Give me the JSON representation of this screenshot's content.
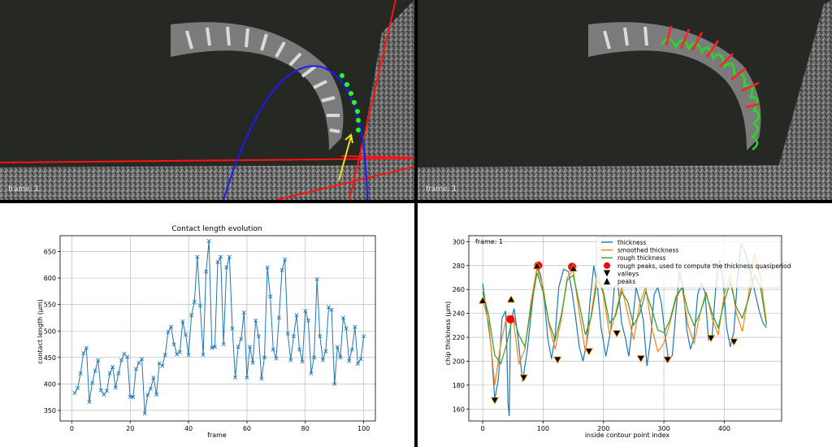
{
  "video_left": {
    "frame_label": "frame: 1"
  },
  "video_right": {
    "frame_label": "frame: 1"
  },
  "chart_data": [
    {
      "type": "line",
      "title": "Contact length evolution",
      "xlabel": "frame",
      "ylabel": "contact length (µm)",
      "xlim": [
        -4,
        104
      ],
      "ylim": [
        330,
        680
      ],
      "xticks": [
        0,
        20,
        40,
        60,
        80,
        100
      ],
      "yticks": [
        350,
        400,
        450,
        500,
        550,
        600,
        650
      ],
      "grid": true,
      "series": [
        {
          "color": "#1f77b4",
          "marker": "x",
          "x": [
            1,
            2,
            3,
            4,
            5,
            6,
            7,
            8,
            9,
            10,
            11,
            12,
            13,
            14,
            15,
            16,
            17,
            18,
            19,
            20,
            21,
            22,
            23,
            24,
            25,
            26,
            27,
            28,
            29,
            30,
            31,
            32,
            33,
            34,
            35,
            36,
            37,
            38,
            39,
            40,
            41,
            42,
            43,
            44,
            45,
            46,
            47,
            48,
            49,
            50,
            51,
            52,
            53,
            54,
            55,
            56,
            57,
            58,
            59,
            60,
            61,
            62,
            63,
            64,
            65,
            66,
            67,
            68,
            69,
            70,
            71,
            72,
            73,
            74,
            75,
            76,
            77,
            78,
            79,
            80,
            81,
            82,
            83,
            84,
            85,
            86,
            87,
            88,
            89,
            90,
            91,
            92,
            93,
            94,
            95,
            96,
            97,
            98,
            99,
            100
          ],
          "y": [
            383,
            392,
            420,
            458,
            468,
            366,
            402,
            425,
            445,
            388,
            380,
            387,
            420,
            432,
            393,
            420,
            445,
            457,
            451,
            376,
            375,
            428,
            440,
            447,
            344,
            379,
            391,
            412,
            380,
            439,
            434,
            455,
            498,
            508,
            475,
            456,
            460,
            518,
            493,
            455,
            530,
            555,
            640,
            548,
            455,
            612,
            670,
            468,
            470,
            630,
            640,
            475,
            620,
            640,
            505,
            412,
            470,
            485,
            535,
            412,
            470,
            440,
            520,
            490,
            410,
            450,
            620,
            565,
            465,
            448,
            525,
            615,
            635,
            495,
            445,
            490,
            530,
            465,
            442,
            538,
            520,
            420,
            450,
            598,
            490,
            445,
            462,
            545,
            540,
            400,
            470,
            450,
            525,
            505,
            443,
            465,
            508,
            438,
            447,
            490
          ]
        }
      ]
    },
    {
      "type": "line",
      "title": "",
      "xlabel": "inside contour point index",
      "ylabel": "chip thickness (µm)",
      "xlim": [
        -23,
        495
      ],
      "ylim": [
        150,
        305
      ],
      "xticks": [
        0,
        100,
        200,
        300,
        400
      ],
      "yticks": [
        160,
        180,
        200,
        220,
        240,
        260,
        280,
        300
      ],
      "grid": true,
      "annotation": "frame: 1",
      "legend_position": "top-right",
      "legend": [
        "thickness",
        "smoothed thickness",
        "rough thickness",
        "rough peaks, used to compute the thickness quasiperiod",
        "valleys",
        "peaks"
      ],
      "series": [
        {
          "name": "thickness",
          "color": "#1f77b4",
          "x": [
            0,
            8,
            14,
            20,
            26,
            32,
            38,
            40,
            42,
            44,
            46,
            48,
            52,
            58,
            66,
            74,
            82,
            90,
            96,
            102,
            108,
            114,
            120,
            126,
            134,
            142,
            148,
            154,
            160,
            166,
            172,
            178,
            184,
            190,
            196,
            204,
            212,
            218,
            224,
            230,
            236,
            242,
            248,
            254,
            260,
            266,
            272,
            278,
            284,
            290,
            296,
            302,
            308,
            314,
            320,
            326,
            332,
            338,
            344,
            350,
            356,
            362,
            368,
            374,
            380,
            386,
            392,
            398,
            404,
            410,
            416,
            422,
            428,
            434,
            440,
            446,
            452,
            458,
            464,
            470
          ],
          "y": [
            265,
            235,
            212,
            168,
            185,
            236,
            242,
            210,
            164,
            154,
            230,
            236,
            244,
            222,
            183,
            210,
            248,
            280,
            272,
            252,
            218,
            202,
            222,
            262,
            277,
            275,
            258,
            236,
            212,
            200,
            215,
            252,
            280,
            262,
            228,
            204,
            226,
            262,
            264,
            232,
            220,
            204,
            232,
            262,
            250,
            234,
            196,
            218,
            256,
            262,
            248,
            222,
            200,
            205,
            242,
            275,
            262,
            226,
            210,
            220,
            256,
            265,
            258,
            218,
            222,
            262,
            285,
            268,
            228,
            212,
            225,
            270,
            298,
            292,
            282,
            268,
            255,
            242,
            232,
            228
          ]
        },
        {
          "name": "smoothed thickness",
          "color": "#ff7f0e",
          "x": [
            0,
            10,
            20,
            30,
            40,
            50,
            60,
            70,
            80,
            90,
            100,
            110,
            120,
            130,
            140,
            150,
            160,
            170,
            180,
            190,
            200,
            210,
            220,
            230,
            240,
            250,
            260,
            270,
            280,
            290,
            300,
            310,
            320,
            330,
            340,
            350,
            360,
            370,
            380,
            390,
            400,
            410,
            420,
            430,
            440,
            450,
            460,
            470
          ],
          "y": [
            252,
            232,
            180,
            215,
            238,
            238,
            198,
            210,
            250,
            278,
            262,
            230,
            210,
            235,
            270,
            276,
            240,
            208,
            240,
            275,
            255,
            222,
            240,
            262,
            240,
            218,
            248,
            262,
            228,
            208,
            215,
            232,
            252,
            262,
            230,
            215,
            240,
            258,
            236,
            222,
            256,
            272,
            240,
            225,
            255,
            290,
            270,
            232
          ]
        },
        {
          "name": "rough thickness",
          "color": "#2ca02c",
          "x": [
            0,
            10,
            20,
            30,
            40,
            50,
            60,
            70,
            80,
            90,
            100,
            110,
            120,
            130,
            140,
            150,
            160,
            170,
            180,
            190,
            200,
            210,
            220,
            230,
            240,
            250,
            260,
            270,
            280,
            290,
            300,
            310,
            320,
            330,
            340,
            350,
            360,
            370,
            380,
            390,
            400,
            410,
            420,
            430,
            440,
            450,
            460,
            470
          ],
          "y": [
            258,
            238,
            205,
            198,
            215,
            238,
            222,
            212,
            245,
            274,
            258,
            232,
            218,
            238,
            268,
            272,
            248,
            222,
            238,
            268,
            258,
            232,
            238,
            258,
            250,
            230,
            240,
            258,
            244,
            226,
            224,
            234,
            254,
            262,
            242,
            230,
            240,
            256,
            240,
            228,
            250,
            266,
            245,
            236,
            252,
            272,
            262,
            230
          ]
        }
      ],
      "rough_peaks": {
        "color": "#ff0000",
        "x": [
          46,
          92,
          148
        ],
        "y": [
          235,
          280,
          279
        ]
      },
      "valleys": {
        "x": [
          20,
          68,
          124,
          176,
          222,
          262,
          306,
          378,
          416
        ],
        "y": [
          167,
          186,
          201,
          208,
          223,
          202,
          201,
          219,
          216
        ]
      },
      "peaks": {
        "x": [
          0,
          47,
          90,
          150
        ],
        "y": [
          251,
          252,
          280,
          278
        ]
      }
    }
  ]
}
